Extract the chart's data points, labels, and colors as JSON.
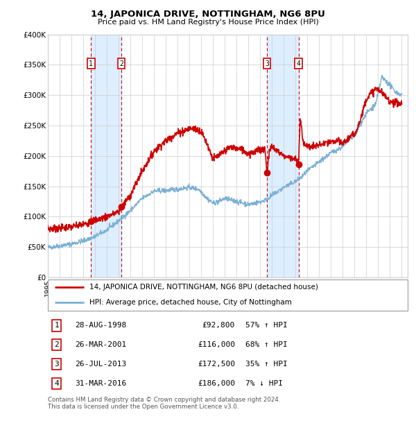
{
  "title": "14, JAPONICA DRIVE, NOTTINGHAM, NG6 8PU",
  "subtitle": "Price paid vs. HM Land Registry's House Price Index (HPI)",
  "footer": "Contains HM Land Registry data © Crown copyright and database right 2024.\nThis data is licensed under the Open Government Licence v3.0.",
  "legend_line1": "14, JAPONICA DRIVE, NOTTINGHAM, NG6 8PU (detached house)",
  "legend_line2": "HPI: Average price, detached house, City of Nottingham",
  "sale_color": "#cc0000",
  "hpi_color": "#7ab0d4",
  "background_color": "#ffffff",
  "plot_bg_color": "#ffffff",
  "grid_color": "#cccccc",
  "highlight_bg_color": "#ddeeff",
  "sale_events": [
    {
      "num": 1,
      "date_num": 1998.66,
      "price": 92800,
      "label": "28-AUG-1998",
      "pct": "57% ↑ HPI"
    },
    {
      "num": 2,
      "date_num": 2001.23,
      "price": 116000,
      "label": "26-MAR-2001",
      "pct": "68% ↑ HPI"
    },
    {
      "num": 3,
      "date_num": 2013.57,
      "price": 172500,
      "label": "26-JUL-2013",
      "pct": "35% ↑ HPI"
    },
    {
      "num": 4,
      "date_num": 2016.25,
      "price": 186000,
      "label": "31-MAR-2016",
      "pct": "7% ↓ HPI"
    }
  ],
  "ylim": [
    0,
    400000
  ],
  "xlim": [
    1995.0,
    2025.5
  ],
  "yticks": [
    0,
    50000,
    100000,
    150000,
    200000,
    250000,
    300000,
    350000,
    400000
  ],
  "ytick_labels": [
    "£0",
    "£50K",
    "£100K",
    "£150K",
    "£200K",
    "£250K",
    "£300K",
    "£350K",
    "£400K"
  ],
  "hpi_anchors": [
    [
      1995.0,
      49000
    ],
    [
      1996.0,
      52000
    ],
    [
      1997.0,
      55000
    ],
    [
      1998.0,
      60000
    ],
    [
      1999.0,
      67000
    ],
    [
      2000.0,
      78000
    ],
    [
      2001.0,
      93000
    ],
    [
      2002.0,
      110000
    ],
    [
      2003.0,
      130000
    ],
    [
      2004.0,
      142000
    ],
    [
      2005.0,
      143000
    ],
    [
      2006.0,
      145000
    ],
    [
      2007.0,
      148000
    ],
    [
      2007.8,
      145000
    ],
    [
      2008.5,
      130000
    ],
    [
      2009.0,
      122000
    ],
    [
      2009.5,
      125000
    ],
    [
      2010.0,
      130000
    ],
    [
      2011.0,
      125000
    ],
    [
      2012.0,
      120000
    ],
    [
      2013.0,
      124000
    ],
    [
      2013.5,
      128000
    ],
    [
      2014.0,
      135000
    ],
    [
      2015.0,
      148000
    ],
    [
      2016.0,
      158000
    ],
    [
      2016.5,
      165000
    ],
    [
      2017.0,
      175000
    ],
    [
      2018.0,
      190000
    ],
    [
      2019.0,
      205000
    ],
    [
      2020.0,
      215000
    ],
    [
      2021.0,
      235000
    ],
    [
      2022.0,
      270000
    ],
    [
      2022.8,
      285000
    ],
    [
      2023.3,
      330000
    ],
    [
      2023.8,
      320000
    ],
    [
      2024.5,
      305000
    ],
    [
      2025.0,
      300000
    ]
  ],
  "prop_anchors": [
    [
      1995.0,
      80000
    ],
    [
      1996.0,
      81000
    ],
    [
      1997.0,
      83000
    ],
    [
      1997.5,
      85000
    ],
    [
      1998.0,
      87000
    ],
    [
      1998.4,
      89000
    ],
    [
      1998.66,
      92800
    ],
    [
      1999.2,
      95000
    ],
    [
      2000.0,
      100000
    ],
    [
      2001.0,
      108000
    ],
    [
      2001.23,
      116000
    ],
    [
      2002.0,
      135000
    ],
    [
      2003.0,
      175000
    ],
    [
      2004.0,
      208000
    ],
    [
      2005.0,
      225000
    ],
    [
      2006.0,
      238000
    ],
    [
      2007.0,
      245000
    ],
    [
      2007.5,
      245000
    ],
    [
      2008.0,
      240000
    ],
    [
      2008.5,
      220000
    ],
    [
      2009.0,
      195000
    ],
    [
      2009.5,
      200000
    ],
    [
      2010.0,
      208000
    ],
    [
      2010.5,
      215000
    ],
    [
      2011.0,
      212000
    ],
    [
      2011.5,
      210000
    ],
    [
      2012.0,
      204000
    ],
    [
      2012.5,
      207000
    ],
    [
      2013.0,
      210000
    ],
    [
      2013.4,
      212000
    ],
    [
      2013.57,
      172500
    ],
    [
      2013.8,
      210000
    ],
    [
      2014.0,
      215000
    ],
    [
      2014.5,
      208000
    ],
    [
      2015.0,
      200000
    ],
    [
      2015.5,
      198000
    ],
    [
      2016.0,
      195000
    ],
    [
      2016.25,
      186000
    ],
    [
      2016.4,
      265000
    ],
    [
      2016.6,
      225000
    ],
    [
      2017.0,
      215000
    ],
    [
      2017.5,
      215000
    ],
    [
      2018.0,
      218000
    ],
    [
      2018.5,
      220000
    ],
    [
      2019.0,
      222000
    ],
    [
      2019.5,
      225000
    ],
    [
      2020.0,
      220000
    ],
    [
      2020.5,
      230000
    ],
    [
      2021.0,
      235000
    ],
    [
      2021.5,
      260000
    ],
    [
      2022.0,
      295000
    ],
    [
      2022.5,
      305000
    ],
    [
      2022.8,
      310000
    ],
    [
      2023.0,
      310000
    ],
    [
      2023.5,
      300000
    ],
    [
      2024.0,
      290000
    ],
    [
      2024.5,
      288000
    ],
    [
      2025.0,
      285000
    ]
  ]
}
